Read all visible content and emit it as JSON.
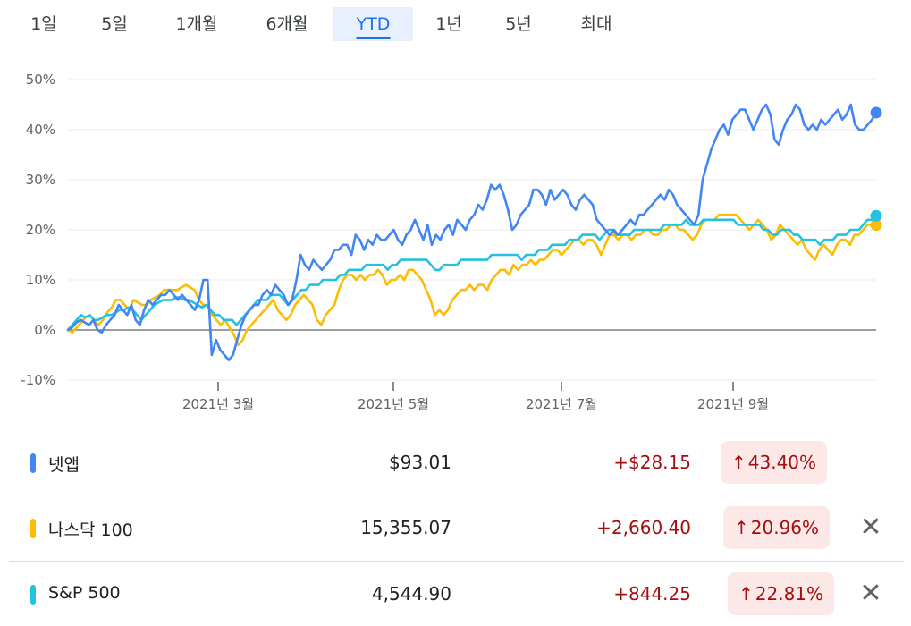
{
  "tabs": [
    {
      "label": "1일",
      "active": false
    },
    {
      "label": "5일",
      "active": false
    },
    {
      "label": "1개월",
      "active": false
    },
    {
      "label": "6개월",
      "active": false
    },
    {
      "label": "YTD",
      "active": true
    },
    {
      "label": "1년",
      "active": false
    },
    {
      "label": "5년",
      "active": false
    },
    {
      "label": "최대",
      "active": false
    }
  ],
  "chart_data": {
    "type": "line",
    "title": "",
    "xlabel": "",
    "ylabel": "",
    "x_tick_labels": [
      "2021년 3월",
      "2021년 5월",
      "2021년 7월",
      "2021년 9월"
    ],
    "y_tick_labels": [
      "50%",
      "40%",
      "30%",
      "20%",
      "10%",
      "0%",
      "-10%"
    ],
    "ylim": [
      -10,
      50
    ],
    "unit": "%",
    "grid": true,
    "series": [
      {
        "name": "넷앱",
        "color": "#4285f4",
        "values": [
          0,
          0.5,
          1.5,
          2,
          1.5,
          1,
          2,
          0,
          -0.5,
          1,
          2,
          3,
          5,
          4,
          3,
          5,
          2,
          1,
          4,
          6,
          5,
          6,
          7,
          7,
          8,
          7,
          6,
          7,
          6,
          5,
          4,
          6,
          10,
          10,
          -5,
          -2,
          -4,
          -5,
          -6,
          -5,
          -2,
          1,
          3,
          4,
          5,
          5,
          7,
          8,
          7,
          9,
          8,
          7,
          5,
          6,
          10,
          15,
          13,
          12,
          14,
          13,
          12,
          13,
          14,
          16,
          16,
          17,
          17,
          15,
          19,
          18,
          16,
          18,
          17,
          19,
          18,
          18,
          19,
          20,
          18,
          17,
          19,
          20,
          22,
          20,
          18,
          21,
          17,
          19,
          18,
          20,
          21,
          19,
          22,
          21,
          20,
          22,
          23,
          25,
          24,
          26,
          29,
          28,
          29,
          27,
          24,
          20,
          21,
          23,
          24,
          25,
          28,
          28,
          27,
          25,
          28,
          26,
          27,
          28,
          27,
          25,
          24,
          26,
          27,
          26,
          25,
          22,
          21,
          20,
          19,
          20,
          19,
          20,
          21,
          22,
          21,
          23,
          23,
          24,
          25,
          26,
          27,
          26,
          28,
          27,
          25,
          24,
          23,
          22,
          21,
          23,
          30,
          33,
          36,
          38,
          40,
          41,
          39,
          42,
          43,
          44,
          44,
          42,
          40,
          42,
          44,
          45,
          43,
          38,
          37,
          40,
          42,
          43,
          45,
          44,
          41,
          40,
          41,
          40,
          42,
          41,
          42,
          43,
          44,
          42,
          43,
          45,
          41,
          40,
          40,
          41,
          42,
          43.4
        ]
      },
      {
        "name": "나스닥 100",
        "color": "#fbbc04",
        "values": [
          0,
          -0.5,
          0.5,
          1.5,
          2.5,
          3,
          2,
          1,
          2,
          3.5,
          4.5,
          6,
          6,
          5,
          4,
          6,
          5.5,
          5,
          5,
          6,
          6.5,
          7,
          8,
          8,
          8,
          8,
          8.5,
          9,
          8.5,
          8,
          6,
          5,
          5,
          3,
          2,
          1,
          2,
          0.5,
          -1,
          -3,
          -2,
          0,
          1,
          2,
          3,
          4,
          5,
          6,
          4,
          3,
          2,
          3,
          5,
          6,
          7,
          6,
          5,
          2,
          1,
          3,
          4,
          5,
          8,
          10,
          11,
          11,
          10,
          11,
          10,
          11,
          11,
          12,
          11,
          9,
          10,
          10,
          11,
          10,
          12,
          12,
          11,
          10,
          8,
          6,
          3,
          4,
          3,
          4,
          6,
          7,
          8,
          8,
          9,
          8,
          9,
          9,
          8,
          10,
          11,
          12,
          12,
          11,
          13,
          12,
          13,
          13,
          14,
          13,
          14,
          14,
          15,
          16,
          16,
          15,
          16,
          17,
          18,
          18,
          17,
          18,
          18,
          17,
          15,
          17,
          19,
          19,
          18,
          19,
          19,
          18,
          19,
          19,
          20,
          20,
          19,
          19,
          20,
          20,
          21,
          21,
          20,
          20,
          19,
          18,
          19,
          21,
          22,
          22,
          22,
          23,
          23,
          23,
          23,
          23,
          22,
          21,
          20,
          21,
          22,
          21,
          20,
          18,
          19,
          21,
          20,
          19,
          18,
          17,
          18,
          16,
          15,
          14,
          16,
          17,
          16,
          15,
          17,
          18,
          18,
          17,
          19,
          19,
          20,
          21,
          21,
          20.96
        ]
      },
      {
        "name": "S&P 500",
        "color": "#24c1e0",
        "values": [
          0,
          1,
          2,
          3,
          2.5,
          3,
          2,
          2,
          2.5,
          3,
          3,
          3.5,
          4,
          4,
          4.5,
          4,
          3,
          2,
          3,
          4,
          5,
          5.5,
          6,
          6,
          6,
          6.5,
          6.5,
          6,
          6,
          5.5,
          5,
          4.5,
          5,
          4,
          3,
          3,
          2,
          2,
          2,
          1,
          2,
          3,
          4,
          5,
          6,
          6,
          6,
          7,
          7,
          7,
          6,
          5,
          6,
          7,
          8,
          8,
          9,
          9,
          9,
          10,
          10,
          10,
          10,
          11,
          11,
          12,
          12,
          12,
          12,
          13,
          13,
          13,
          13,
          13,
          12,
          13,
          13,
          14,
          14,
          14,
          14,
          14,
          14,
          14,
          13,
          12,
          12,
          13,
          13,
          13,
          13,
          14,
          14,
          14,
          14,
          14,
          14,
          14,
          15,
          15,
          15,
          15,
          15,
          15,
          15,
          14,
          15,
          15,
          15,
          16,
          16,
          16,
          17,
          17,
          17,
          17,
          18,
          18,
          18,
          19,
          19,
          19,
          19,
          18,
          19,
          20,
          20,
          19,
          19,
          19,
          19,
          20,
          20,
          20,
          20,
          20,
          20,
          20,
          21,
          21,
          21,
          21,
          21,
          22,
          21,
          21,
          21,
          22,
          22,
          22,
          22,
          22,
          22,
          22,
          22,
          21,
          21,
          21,
          21,
          21,
          21,
          20,
          20,
          19,
          19,
          20,
          20,
          20,
          19,
          19,
          18,
          18,
          18,
          18,
          17,
          18,
          18,
          18,
          19,
          19,
          19,
          20,
          20,
          20,
          21,
          22,
          22,
          22.81
        ]
      }
    ]
  },
  "rows": [
    {
      "name": "넷앱",
      "color": "#4285f4",
      "price": "$93.01",
      "change": "+$28.15",
      "pct": "43.40%",
      "arrow": "↑",
      "closable": false
    },
    {
      "name": "나스닥 100",
      "color": "#fbbc04",
      "price": "15,355.07",
      "change": "+2,660.40",
      "pct": "20.96%",
      "arrow": "↑",
      "closable": true
    },
    {
      "name": "S&P 500",
      "color": "#24c1e0",
      "price": "4,544.90",
      "change": "+844.25",
      "pct": "22.81%",
      "arrow": "↑",
      "closable": true
    }
  ],
  "close_icon": "close-icon"
}
